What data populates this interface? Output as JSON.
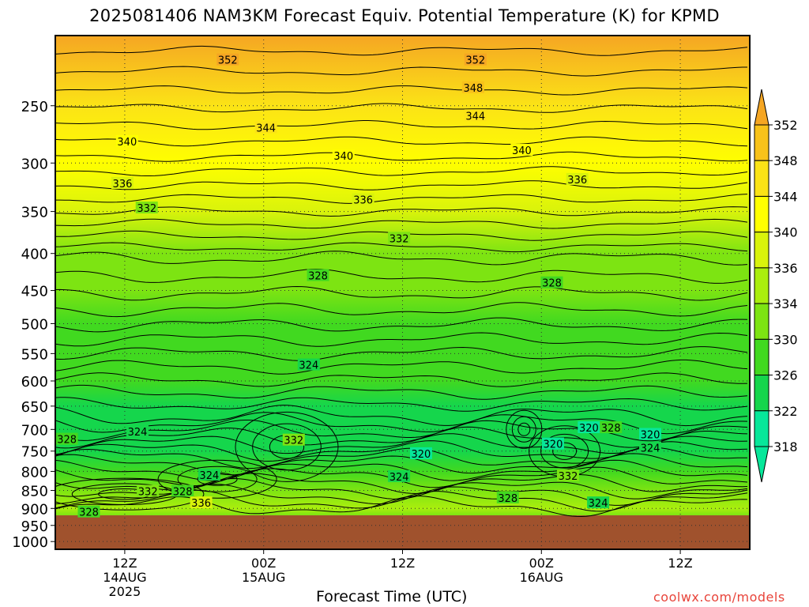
{
  "title": "2025081406 NAM3KM Forecast Equiv. Potential Temperature (K) for KPMD",
  "credit": "coolwx.com/models",
  "chart_data": {
    "type": "heatmap",
    "title": "2025081406 NAM3KM Forecast Equiv. Potential Temperature (K) for KPMD",
    "xlabel": "Forecast Time (UTC)",
    "ylabel": "",
    "x_range_hours": [
      0,
      60
    ],
    "x_ticks": [
      {
        "hour": 6,
        "labels": [
          "12Z",
          "14AUG",
          "2025"
        ]
      },
      {
        "hour": 18,
        "labels": [
          "00Z",
          "15AUG"
        ]
      },
      {
        "hour": 30,
        "labels": [
          "12Z"
        ]
      },
      {
        "hour": 42,
        "labels": [
          "00Z",
          "16AUG"
        ]
      },
      {
        "hour": 54,
        "labels": [
          "12Z"
        ]
      }
    ],
    "y_ticks": [
      "250",
      "300",
      "350",
      "400",
      "450",
      "500",
      "550",
      "600",
      "650",
      "700",
      "750",
      "800",
      "850",
      "900",
      "950",
      "1000"
    ],
    "y_scale": "log-pressure",
    "y_range_hPa": [
      200,
      1025
    ],
    "surface_pressure_hPa": 920,
    "grid": true,
    "colorbar": {
      "ticks": [
        "352",
        "348",
        "344",
        "340",
        "336",
        "334",
        "330",
        "326",
        "322",
        "318"
      ],
      "colors": [
        "#f5a623",
        "#f8c21a",
        "#fbe316",
        "#ffff00",
        "#d9f30b",
        "#aaee0e",
        "#7de412",
        "#41d920",
        "#15d64c",
        "#07e79a"
      ],
      "extends": "both"
    },
    "contour_interval_K": 4,
    "levels_hPa": [
      200,
      250,
      300,
      350,
      400,
      450,
      500,
      550,
      600,
      650,
      700,
      750,
      800,
      850,
      900,
      920
    ],
    "theta_e_K": [
      353,
      347,
      342,
      337,
      333,
      330,
      328,
      327,
      326,
      325,
      324,
      323,
      326,
      330,
      334,
      332
    ],
    "contour_labels": [
      {
        "hour": 14.9,
        "p": 216,
        "text": "352"
      },
      {
        "hour": 36.3,
        "p": 216,
        "text": "352"
      },
      {
        "hour": 36.1,
        "p": 236,
        "text": "348"
      },
      {
        "hour": 18.2,
        "p": 268,
        "text": "344"
      },
      {
        "hour": 36.3,
        "p": 258,
        "text": "344"
      },
      {
        "hour": 6.2,
        "p": 280,
        "text": "340"
      },
      {
        "hour": 24.9,
        "p": 293,
        "text": "340"
      },
      {
        "hour": 40.3,
        "p": 288,
        "text": "340"
      },
      {
        "hour": 5.8,
        "p": 320,
        "text": "336"
      },
      {
        "hour": 26.6,
        "p": 337,
        "text": "336"
      },
      {
        "hour": 45.1,
        "p": 316,
        "text": "336"
      },
      {
        "hour": 7.9,
        "p": 346,
        "text": "332"
      },
      {
        "hour": 29.7,
        "p": 381,
        "text": "332"
      },
      {
        "hour": 22.7,
        "p": 429,
        "text": "328"
      },
      {
        "hour": 42.9,
        "p": 439,
        "text": "328"
      },
      {
        "hour": 21.9,
        "p": 570,
        "text": "324"
      },
      {
        "hour": 7.1,
        "p": 705,
        "text": "324"
      },
      {
        "hour": 1.0,
        "p": 722,
        "text": "328"
      },
      {
        "hour": 20.6,
        "p": 724,
        "text": "332"
      },
      {
        "hour": 31.6,
        "p": 756,
        "text": "320"
      },
      {
        "hour": 43.0,
        "p": 733,
        "text": "320"
      },
      {
        "hour": 46.1,
        "p": 696,
        "text": "320"
      },
      {
        "hour": 48.0,
        "p": 696,
        "text": "328"
      },
      {
        "hour": 51.4,
        "p": 711,
        "text": "320"
      },
      {
        "hour": 51.4,
        "p": 742,
        "text": "324"
      },
      {
        "hour": 13.3,
        "p": 809,
        "text": "324"
      },
      {
        "hour": 29.7,
        "p": 813,
        "text": "324"
      },
      {
        "hour": 44.3,
        "p": 811,
        "text": "332"
      },
      {
        "hour": 8.0,
        "p": 852,
        "text": "332"
      },
      {
        "hour": 11.0,
        "p": 852,
        "text": "328"
      },
      {
        "hour": 12.6,
        "p": 884,
        "text": "336"
      },
      {
        "hour": 39.1,
        "p": 870,
        "text": "328"
      },
      {
        "hour": 46.9,
        "p": 884,
        "text": "324"
      },
      {
        "hour": 2.9,
        "p": 910,
        "text": "328"
      }
    ]
  }
}
